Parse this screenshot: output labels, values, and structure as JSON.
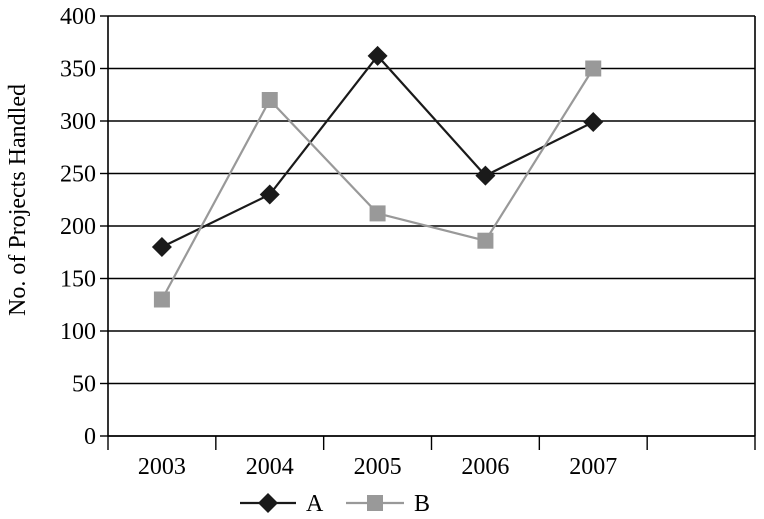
{
  "chart_data": {
    "type": "line",
    "title": "",
    "xlabel": "",
    "ylabel": "No. of Projects Handled",
    "categories": [
      "2003",
      "2004",
      "2005",
      "2006",
      "2007"
    ],
    "ylim": [
      0,
      400
    ],
    "yticks": [
      "0",
      "50",
      "100",
      "150",
      "200",
      "250",
      "300",
      "350",
      "400"
    ],
    "grid": "horizontal",
    "legend_position": "bottom",
    "series": [
      {
        "name": "A",
        "values": [
          180,
          230,
          362,
          248,
          299
        ],
        "color": "#1a1a1a",
        "marker": "diamond"
      },
      {
        "name": "B",
        "values": [
          130,
          320,
          212,
          186,
          350
        ],
        "color": "#999999",
        "marker": "square"
      }
    ]
  }
}
